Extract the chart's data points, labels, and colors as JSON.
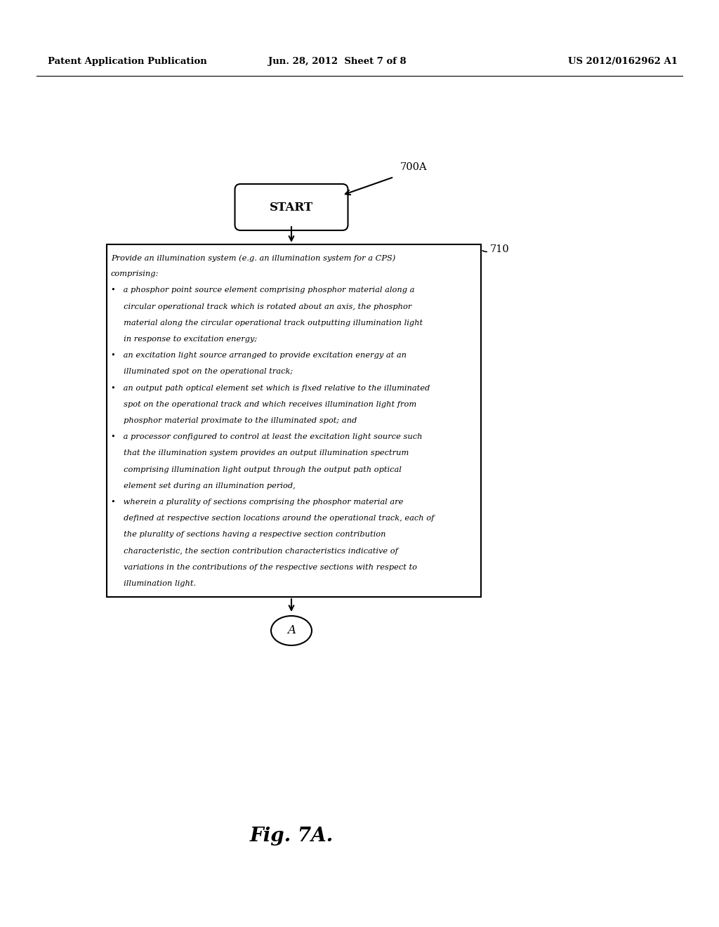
{
  "background_color": "#ffffff",
  "header_left": "Patent Application Publication",
  "header_center": "Jun. 28, 2012  Sheet 7 of 8",
  "header_right": "US 2012/0162962 A1",
  "label_700A": "700A",
  "label_710": "710",
  "start_label": "START",
  "connector_label": "A",
  "fig_caption": "Fig. 7A.",
  "box_text_lines": [
    "Provide an illumination system (e.g. an illumination system for a CPS)",
    "comprising:",
    "•   a phosphor point source element comprising phosphor material along a",
    "     circular operational track which is rotated about an axis, the phosphor",
    "     material along the circular operational track outputting illumination light",
    "     in response to excitation energy;",
    "•   an excitation light source arranged to provide excitation energy at an",
    "     illuminated spot on the operational track;",
    "•   an output path optical element set which is fixed relative to the illuminated",
    "     spot on the operational track and which receives illumination light from",
    "     phosphor material proximate to the illuminated spot; and",
    "•   a processor configured to control at least the excitation light source such",
    "     that the illumination system provides an output illumination spectrum",
    "     comprising illumination light output through the output path optical",
    "     element set during an illumination period,",
    "•   wherein a plurality of sections comprising the phosphor material are",
    "     defined at respective section locations around the operational track, each of",
    "     the plurality of sections having a respective section contribution",
    "     characteristic, the section contribution characteristics indicative of",
    "     variations in the contributions of the respective sections with respect to",
    "     illumination light."
  ]
}
